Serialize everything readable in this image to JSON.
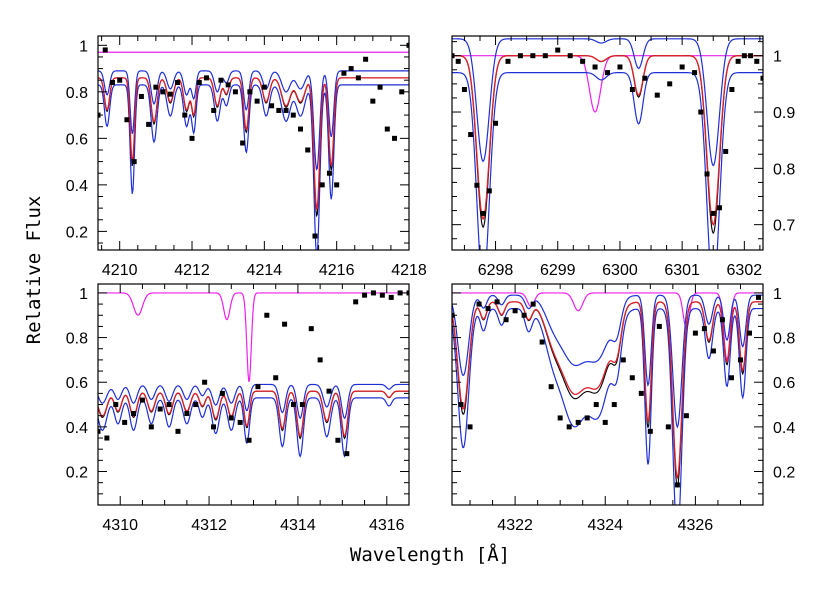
{
  "figure": {
    "xlabel": "Wavelength [Å]",
    "ylabel": "Relative Flux"
  },
  "colors": {
    "observed": "#000000",
    "model_best": "#e0202a",
    "model_bounds": "#1f2fd6",
    "model_comparison": "#ee20ee",
    "model_black": "#000000"
  },
  "chart_data": [
    {
      "type": "line",
      "panel": "top-left",
      "xlim": [
        4209.4,
        4218.0
      ],
      "ylim": [
        0.12,
        1.04
      ],
      "xticks": [
        4210,
        4212,
        4214,
        4216,
        4218
      ],
      "yticks": [
        0.2,
        0.4,
        0.6,
        0.8,
        1
      ],
      "ytick_labels": [
        "0.2",
        "0.4",
        "0.6",
        "0.8",
        "1"
      ],
      "yaxis_side": "left",
      "continuum": 0.86,
      "comparison_continuum": 0.97,
      "lines": [
        {
          "center": 4209.65,
          "depth": 0.16,
          "width": 0.07
        },
        {
          "center": 4210.35,
          "depth": 0.42,
          "width": 0.06
        },
        {
          "center": 4210.95,
          "depth": 0.22,
          "width": 0.08
        },
        {
          "center": 4211.4,
          "depth": 0.12,
          "width": 0.09
        },
        {
          "center": 4211.85,
          "depth": 0.16,
          "width": 0.08
        },
        {
          "center": 4212.05,
          "depth": 0.18,
          "width": 0.06
        },
        {
          "center": 4212.7,
          "depth": 0.14,
          "width": 0.08
        },
        {
          "center": 4212.95,
          "depth": 0.08,
          "width": 0.07
        },
        {
          "center": 4213.5,
          "depth": 0.26,
          "width": 0.07
        },
        {
          "center": 4214.05,
          "depth": 0.12,
          "width": 0.09
        },
        {
          "center": 4214.6,
          "depth": 0.14,
          "width": 0.12
        },
        {
          "center": 4215.0,
          "depth": 0.12,
          "width": 0.12
        },
        {
          "center": 4215.45,
          "depth": 0.66,
          "width": 0.08
        },
        {
          "center": 4215.85,
          "depth": 0.44,
          "width": 0.07
        }
      ],
      "observed": {
        "x": [
          4209.4,
          4209.6,
          4209.8,
          4210.0,
          4210.2,
          4210.4,
          4210.6,
          4210.8,
          4211.0,
          4211.2,
          4211.4,
          4211.6,
          4211.8,
          4212.0,
          4212.2,
          4212.4,
          4212.6,
          4212.8,
          4213.0,
          4213.2,
          4213.4,
          4213.6,
          4213.8,
          4214.0,
          4214.2,
          4214.4,
          4214.6,
          4214.8,
          4215.0,
          4215.2,
          4215.4,
          4215.6,
          4215.8,
          4216.0,
          4216.2,
          4216.4,
          4216.6,
          4216.8,
          4217.0,
          4217.2,
          4217.4,
          4217.6,
          4217.8,
          4218.0
        ],
        "y": [
          0.7,
          0.98,
          0.84,
          0.85,
          0.68,
          0.5,
          0.78,
          0.66,
          0.82,
          0.8,
          0.79,
          0.84,
          0.7,
          0.6,
          0.84,
          0.86,
          0.72,
          0.85,
          0.83,
          0.8,
          0.58,
          0.8,
          0.76,
          0.82,
          0.74,
          0.72,
          0.72,
          0.7,
          0.64,
          0.55,
          0.18,
          0.4,
          0.45,
          0.4,
          0.88,
          0.9,
          0.86,
          0.94,
          0.76,
          0.82,
          0.64,
          0.6,
          0.8,
          1.0
        ]
      }
    },
    {
      "type": "line",
      "panel": "top-right",
      "xlim": [
        6297.3,
        6302.3
      ],
      "ylim": [
        0.655,
        1.035
      ],
      "xticks": [
        6298,
        6299,
        6300,
        6301,
        6302
      ],
      "yticks": [
        0.7,
        0.8,
        0.9,
        1
      ],
      "ytick_labels": [
        "0.7",
        "0.8",
        "0.9",
        "1"
      ],
      "yaxis_side": "right",
      "continuum": 1.0,
      "comparison_continuum": 1.0,
      "lines": [
        {
          "center": 6297.8,
          "depth": 0.29,
          "width": 0.1
        },
        {
          "center": 6301.5,
          "depth": 0.3,
          "width": 0.1
        },
        {
          "center": 6300.3,
          "depth": 0.07,
          "width": 0.07
        },
        {
          "center": 6299.7,
          "depth": 0.01,
          "width": 0.08
        }
      ],
      "comparison_lines": [
        {
          "center": 6299.6,
          "depth": 0.1,
          "width": 0.09
        }
      ],
      "observed": {
        "x": [
          6297.3,
          6297.4,
          6297.5,
          6297.6,
          6297.7,
          6297.8,
          6297.9,
          6298.0,
          6298.2,
          6298.4,
          6298.6,
          6298.8,
          6299.0,
          6299.2,
          6299.4,
          6299.6,
          6299.8,
          6300.0,
          6300.2,
          6300.4,
          6300.6,
          6300.8,
          6301.0,
          6301.2,
          6301.3,
          6301.4,
          6301.5,
          6301.6,
          6301.7,
          6301.8,
          6301.9,
          6302.0,
          6302.1,
          6302.2,
          6302.3
        ],
        "y": [
          1.0,
          0.99,
          0.94,
          0.86,
          0.77,
          0.72,
          0.76,
          0.88,
          0.99,
          1.0,
          1.0,
          1.0,
          1.01,
          1.0,
          0.99,
          0.98,
          0.97,
          0.98,
          0.94,
          0.96,
          0.93,
          0.95,
          0.98,
          0.97,
          0.9,
          0.79,
          0.72,
          0.73,
          0.83,
          0.94,
          0.99,
          1.0,
          1.0,
          0.99,
          0.96
        ]
      }
    },
    {
      "type": "line",
      "panel": "bottom-left",
      "xlim": [
        4309.5,
        4316.5
      ],
      "ylim": [
        0.05,
        1.04
      ],
      "xticks": [
        4310,
        4312,
        4314,
        4316
      ],
      "yticks": [
        0.2,
        0.4,
        0.6,
        0.8,
        1
      ],
      "ytick_labels": [
        "0.2",
        "0.4",
        "0.6",
        "0.8",
        "1"
      ],
      "yaxis_side": "left",
      "continuum": 0.56,
      "comparison_continuum": 1.0,
      "lines": [
        {
          "center": 4309.6,
          "depth": 0.2,
          "width": 0.1
        },
        {
          "center": 4309.95,
          "depth": 0.16,
          "width": 0.08
        },
        {
          "center": 4310.3,
          "depth": 0.2,
          "width": 0.08
        },
        {
          "center": 4310.7,
          "depth": 0.16,
          "width": 0.08
        },
        {
          "center": 4311.1,
          "depth": 0.18,
          "width": 0.08
        },
        {
          "center": 4311.5,
          "depth": 0.16,
          "width": 0.08
        },
        {
          "center": 4311.85,
          "depth": 0.12,
          "width": 0.07
        },
        {
          "center": 4312.15,
          "depth": 0.22,
          "width": 0.08
        },
        {
          "center": 4312.5,
          "depth": 0.2,
          "width": 0.08
        },
        {
          "center": 4312.85,
          "depth": 0.28,
          "width": 0.06
        },
        {
          "center": 4313.65,
          "depth": 0.3,
          "width": 0.07
        },
        {
          "center": 4314.05,
          "depth": 0.36,
          "width": 0.07
        },
        {
          "center": 4314.65,
          "depth": 0.24,
          "width": 0.08
        },
        {
          "center": 4315.05,
          "depth": 0.36,
          "width": 0.07
        },
        {
          "center": 4316.05,
          "depth": 0.05,
          "width": 0.06
        }
      ],
      "comparison_lines": [
        {
          "center": 4310.4,
          "depth": 0.1,
          "width": 0.1
        },
        {
          "center": 4312.4,
          "depth": 0.12,
          "width": 0.07
        },
        {
          "center": 4312.9,
          "depth": 0.4,
          "width": 0.05
        }
      ],
      "observed": {
        "x": [
          4309.5,
          4309.7,
          4309.9,
          4310.1,
          4310.3,
          4310.5,
          4310.7,
          4310.9,
          4311.1,
          4311.3,
          4311.5,
          4311.7,
          4311.9,
          4312.1,
          4312.3,
          4312.5,
          4312.7,
          4312.9,
          4313.1,
          4313.3,
          4313.5,
          4313.7,
          4313.9,
          4314.1,
          4314.3,
          4314.5,
          4314.7,
          4314.9,
          4315.1,
          4315.3,
          4315.5,
          4315.7,
          4315.9,
          4316.1,
          4316.3,
          4316.5
        ],
        "y": [
          0.38,
          0.35,
          0.5,
          0.42,
          0.46,
          0.52,
          0.4,
          0.48,
          0.5,
          0.38,
          0.46,
          0.5,
          0.6,
          0.4,
          0.55,
          0.44,
          0.42,
          0.34,
          0.58,
          0.9,
          0.62,
          0.86,
          0.5,
          0.5,
          0.84,
          0.7,
          0.56,
          0.34,
          0.28,
          0.96,
          0.99,
          1.0,
          0.99,
          0.98,
          1.0,
          1.0
        ]
      }
    },
    {
      "type": "line",
      "panel": "bottom-right",
      "xlim": [
        4320.6,
        4327.5
      ],
      "ylim": [
        0.05,
        1.04
      ],
      "xticks": [
        4322,
        4324,
        4326
      ],
      "yticks": [
        0.2,
        0.4,
        0.6,
        0.8,
        1
      ],
      "ytick_labels": [
        "0.2",
        "0.4",
        "0.6",
        "0.8",
        "1"
      ],
      "yaxis_side": "right",
      "continuum": 0.96,
      "comparison_continuum": 1.0,
      "lines": [
        {
          "center": 4320.85,
          "depth": 0.5,
          "width": 0.12
        },
        {
          "center": 4321.3,
          "depth": 0.08,
          "width": 0.07
        },
        {
          "center": 4321.7,
          "depth": 0.06,
          "width": 0.07
        },
        {
          "center": 4322.3,
          "depth": 0.08,
          "width": 0.08
        },
        {
          "center": 4322.85,
          "depth": 0.14,
          "width": 0.2
        },
        {
          "center": 4323.3,
          "depth": 0.4,
          "width": 0.28
        },
        {
          "center": 4323.85,
          "depth": 0.36,
          "width": 0.26
        },
        {
          "center": 4324.25,
          "depth": 0.18,
          "width": 0.1
        },
        {
          "center": 4324.95,
          "depth": 0.56,
          "width": 0.07
        },
        {
          "center": 4325.6,
          "depth": 0.82,
          "width": 0.1
        },
        {
          "center": 4326.3,
          "depth": 0.18,
          "width": 0.08
        },
        {
          "center": 4326.7,
          "depth": 0.28,
          "width": 0.07
        },
        {
          "center": 4327.05,
          "depth": 0.32,
          "width": 0.07
        }
      ],
      "comparison_lines": [
        {
          "center": 4322.35,
          "depth": 0.06,
          "width": 0.08
        },
        {
          "center": 4323.4,
          "depth": 0.08,
          "width": 0.1
        },
        {
          "center": 4325.8,
          "depth": 0.16,
          "width": 0.07
        },
        {
          "center": 4326.7,
          "depth": 0.3,
          "width": 0.07
        }
      ],
      "observed": {
        "x": [
          4320.6,
          4320.8,
          4321.0,
          4321.2,
          4321.4,
          4321.6,
          4321.8,
          4322.0,
          4322.2,
          4322.4,
          4322.6,
          4322.8,
          4323.0,
          4323.2,
          4323.4,
          4323.6,
          4323.8,
          4324.0,
          4324.2,
          4324.4,
          4324.6,
          4324.8,
          4325.0,
          4325.2,
          4325.4,
          4325.6,
          4325.8,
          4326.0,
          4326.2,
          4326.4,
          4326.6,
          4326.8,
          4327.0,
          4327.2,
          4327.4
        ],
        "y": [
          0.9,
          0.5,
          0.4,
          0.95,
          0.93,
          0.96,
          0.88,
          0.92,
          0.9,
          0.95,
          0.78,
          0.58,
          0.44,
          0.4,
          0.42,
          0.44,
          0.5,
          0.42,
          0.5,
          0.7,
          0.62,
          0.55,
          0.38,
          0.85,
          0.4,
          0.14,
          0.45,
          0.82,
          0.84,
          0.74,
          0.88,
          0.62,
          0.7,
          0.82,
          0.98
        ]
      }
    }
  ]
}
